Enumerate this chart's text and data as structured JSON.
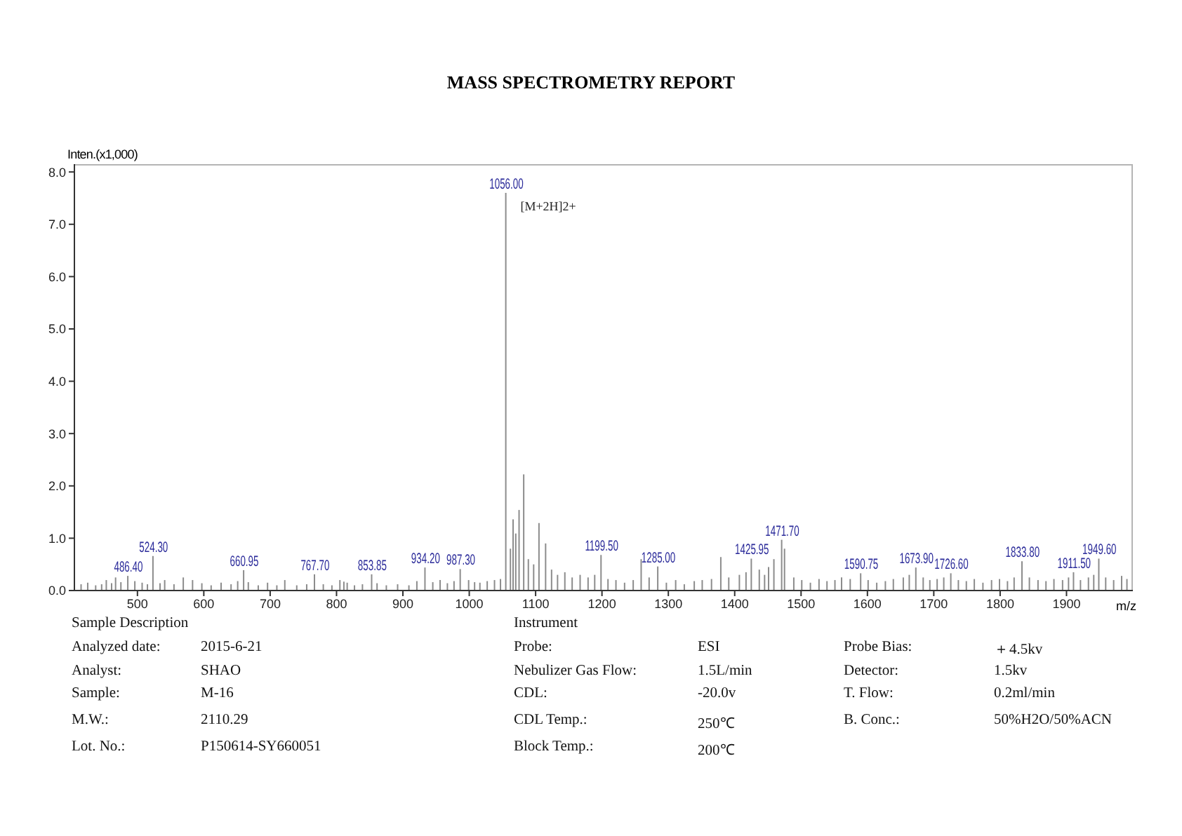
{
  "chart_data": {
    "type": "bar",
    "title": "MASS SPECTROMETRY REPORT",
    "xlabel": "m/z",
    "ylabel": "Inten.(x1,000)",
    "color": "#8c8c8c",
    "x": [
      416,
      426,
      438,
      447,
      454,
      462,
      468,
      476,
      486.4,
      497,
      508,
      516,
      524.3,
      535,
      542,
      556,
      570,
      584,
      598,
      612,
      627,
      642,
      652,
      660.95,
      668,
      683,
      697,
      711,
      723,
      741,
      756,
      767.7,
      781,
      794,
      806,
      812,
      817,
      828,
      840,
      853.85,
      862,
      876,
      893,
      910,
      922,
      934.2,
      946,
      957,
      968,
      978,
      987.3,
      1000,
      1009,
      1017,
      1028,
      1039,
      1048,
      1056,
      1063,
      1067,
      1071,
      1076,
      1083,
      1090,
      1098,
      1106,
      1116,
      1125,
      1134,
      1145,
      1156,
      1168,
      1180,
      1190,
      1199.5,
      1210,
      1222,
      1235,
      1248,
      1260,
      1272,
      1285,
      1298,
      1312,
      1325,
      1340,
      1352,
      1366,
      1380,
      1392,
      1408,
      1418,
      1425.95,
      1438,
      1446,
      1452,
      1460,
      1471.7,
      1476,
      1490,
      1502,
      1515,
      1528,
      1540,
      1552,
      1562,
      1575,
      1590.75,
      1602,
      1615,
      1628,
      1640,
      1655,
      1664,
      1673.9,
      1685,
      1695,
      1706,
      1716,
      1726.6,
      1738,
      1750,
      1762,
      1775,
      1788,
      1800,
      1812,
      1822,
      1833.8,
      1845,
      1858,
      1870,
      1882,
      1895,
      1904,
      1911.5,
      1922,
      1934,
      1942,
      1949.6,
      1960,
      1972,
      1984,
      1992
    ],
    "values": [
      0.12,
      0.15,
      0.1,
      0.12,
      0.2,
      0.14,
      0.25,
      0.16,
      0.28,
      0.18,
      0.15,
      0.12,
      0.66,
      0.14,
      0.2,
      0.12,
      0.25,
      0.2,
      0.14,
      0.1,
      0.15,
      0.12,
      0.18,
      0.39,
      0.16,
      0.1,
      0.15,
      0.1,
      0.2,
      0.1,
      0.12,
      0.31,
      0.12,
      0.1,
      0.2,
      0.17,
      0.15,
      0.1,
      0.12,
      0.31,
      0.14,
      0.1,
      0.12,
      0.1,
      0.18,
      0.44,
      0.16,
      0.2,
      0.14,
      0.18,
      0.41,
      0.2,
      0.16,
      0.15,
      0.18,
      0.2,
      0.22,
      7.6,
      0.8,
      1.36,
      1.09,
      1.54,
      2.22,
      0.6,
      0.5,
      1.29,
      0.9,
      0.4,
      0.3,
      0.35,
      0.25,
      0.3,
      0.25,
      0.3,
      0.68,
      0.22,
      0.2,
      0.15,
      0.2,
      0.6,
      0.25,
      0.46,
      0.15,
      0.2,
      0.12,
      0.18,
      0.2,
      0.22,
      0.64,
      0.25,
      0.3,
      0.35,
      0.61,
      0.4,
      0.3,
      0.45,
      0.6,
      0.97,
      0.8,
      0.25,
      0.2,
      0.15,
      0.22,
      0.18,
      0.2,
      0.25,
      0.22,
      0.33,
      0.2,
      0.15,
      0.18,
      0.22,
      0.25,
      0.3,
      0.44,
      0.25,
      0.2,
      0.22,
      0.25,
      0.33,
      0.2,
      0.18,
      0.22,
      0.15,
      0.2,
      0.22,
      0.18,
      0.25,
      0.56,
      0.25,
      0.2,
      0.18,
      0.22,
      0.2,
      0.25,
      0.35,
      0.2,
      0.25,
      0.3,
      0.61,
      0.25,
      0.2,
      0.28,
      0.22
    ],
    "xlim": [
      405,
      2000
    ],
    "ylim": [
      0,
      8.15
    ],
    "xticks": [
      500,
      600,
      700,
      800,
      900,
      1000,
      1100,
      1200,
      1300,
      1400,
      1500,
      1600,
      1700,
      1800,
      1900
    ],
    "yticks": [
      {
        "value": 0,
        "label": "0.0"
      },
      {
        "value": 1,
        "label": "1.0"
      },
      {
        "value": 2,
        "label": "2.0"
      },
      {
        "value": 3,
        "label": "3.0"
      },
      {
        "value": 4,
        "label": "4.0"
      },
      {
        "value": 5,
        "label": "5.0"
      },
      {
        "value": 6,
        "label": "6.0"
      },
      {
        "value": 7,
        "label": "7.0"
      },
      {
        "value": 8,
        "label": "8.0"
      }
    ],
    "annotations": [
      {
        "text": "486.40",
        "x": 486.4,
        "y": 0.28
      },
      {
        "text": "524.30",
        "x": 524.3,
        "y": 0.66
      },
      {
        "text": "660.95",
        "x": 660.95,
        "y": 0.39
      },
      {
        "text": "767.70",
        "x": 767.7,
        "y": 0.31
      },
      {
        "text": "853.85",
        "x": 853.85,
        "y": 0.31
      },
      {
        "text": "934.20",
        "x": 934.2,
        "y": 0.44
      },
      {
        "text": "987.30",
        "x": 987.3,
        "y": 0.41
      },
      {
        "text": "1056.00",
        "x": 1056,
        "y": 7.6
      },
      {
        "text": "[M+2H]2+",
        "x": 1056,
        "y": 7.35
      },
      {
        "text": "1199.50",
        "x": 1199.5,
        "y": 0.68
      },
      {
        "text": "1285.00",
        "x": 1285,
        "y": 0.46
      },
      {
        "text": "1425.95",
        "x": 1425.95,
        "y": 0.61
      },
      {
        "text": "1471.70",
        "x": 1471.7,
        "y": 0.97
      },
      {
        "text": "1590.75",
        "x": 1590.75,
        "y": 0.33
      },
      {
        "text": "1673.90",
        "x": 1673.9,
        "y": 0.44
      },
      {
        "text": "1726.60",
        "x": 1726.6,
        "y": 0.33
      },
      {
        "text": "1833.80",
        "x": 1833.8,
        "y": 0.56
      },
      {
        "text": "1911.50",
        "x": 1911.5,
        "y": 0.35
      },
      {
        "text": "1949.60",
        "x": 1949.6,
        "y": 0.61
      },
      "Sample Description",
      "Instrument",
      "Analyzed date:",
      "2015-6-21",
      "Probe:",
      "ESI",
      "Probe Bias:",
      "＋4.5kv",
      "Analyst:",
      "SHAO",
      "Nebulizer Gas Flow:",
      "1.5L/min",
      "Detector:",
      "1.5kv",
      "Sample:",
      "M-16",
      "CDL:",
      "-20.0v",
      "T. Flow:",
      "0.2ml/min",
      "M.W.:",
      "2110.29",
      "CDL Temp.:",
      "250℃",
      "B. Conc.:",
      "50%H2O/50%ACN",
      "Lot. No.:",
      "P150614-SY660051",
      "Block Temp.:",
      "200℃"
    ]
  }
}
